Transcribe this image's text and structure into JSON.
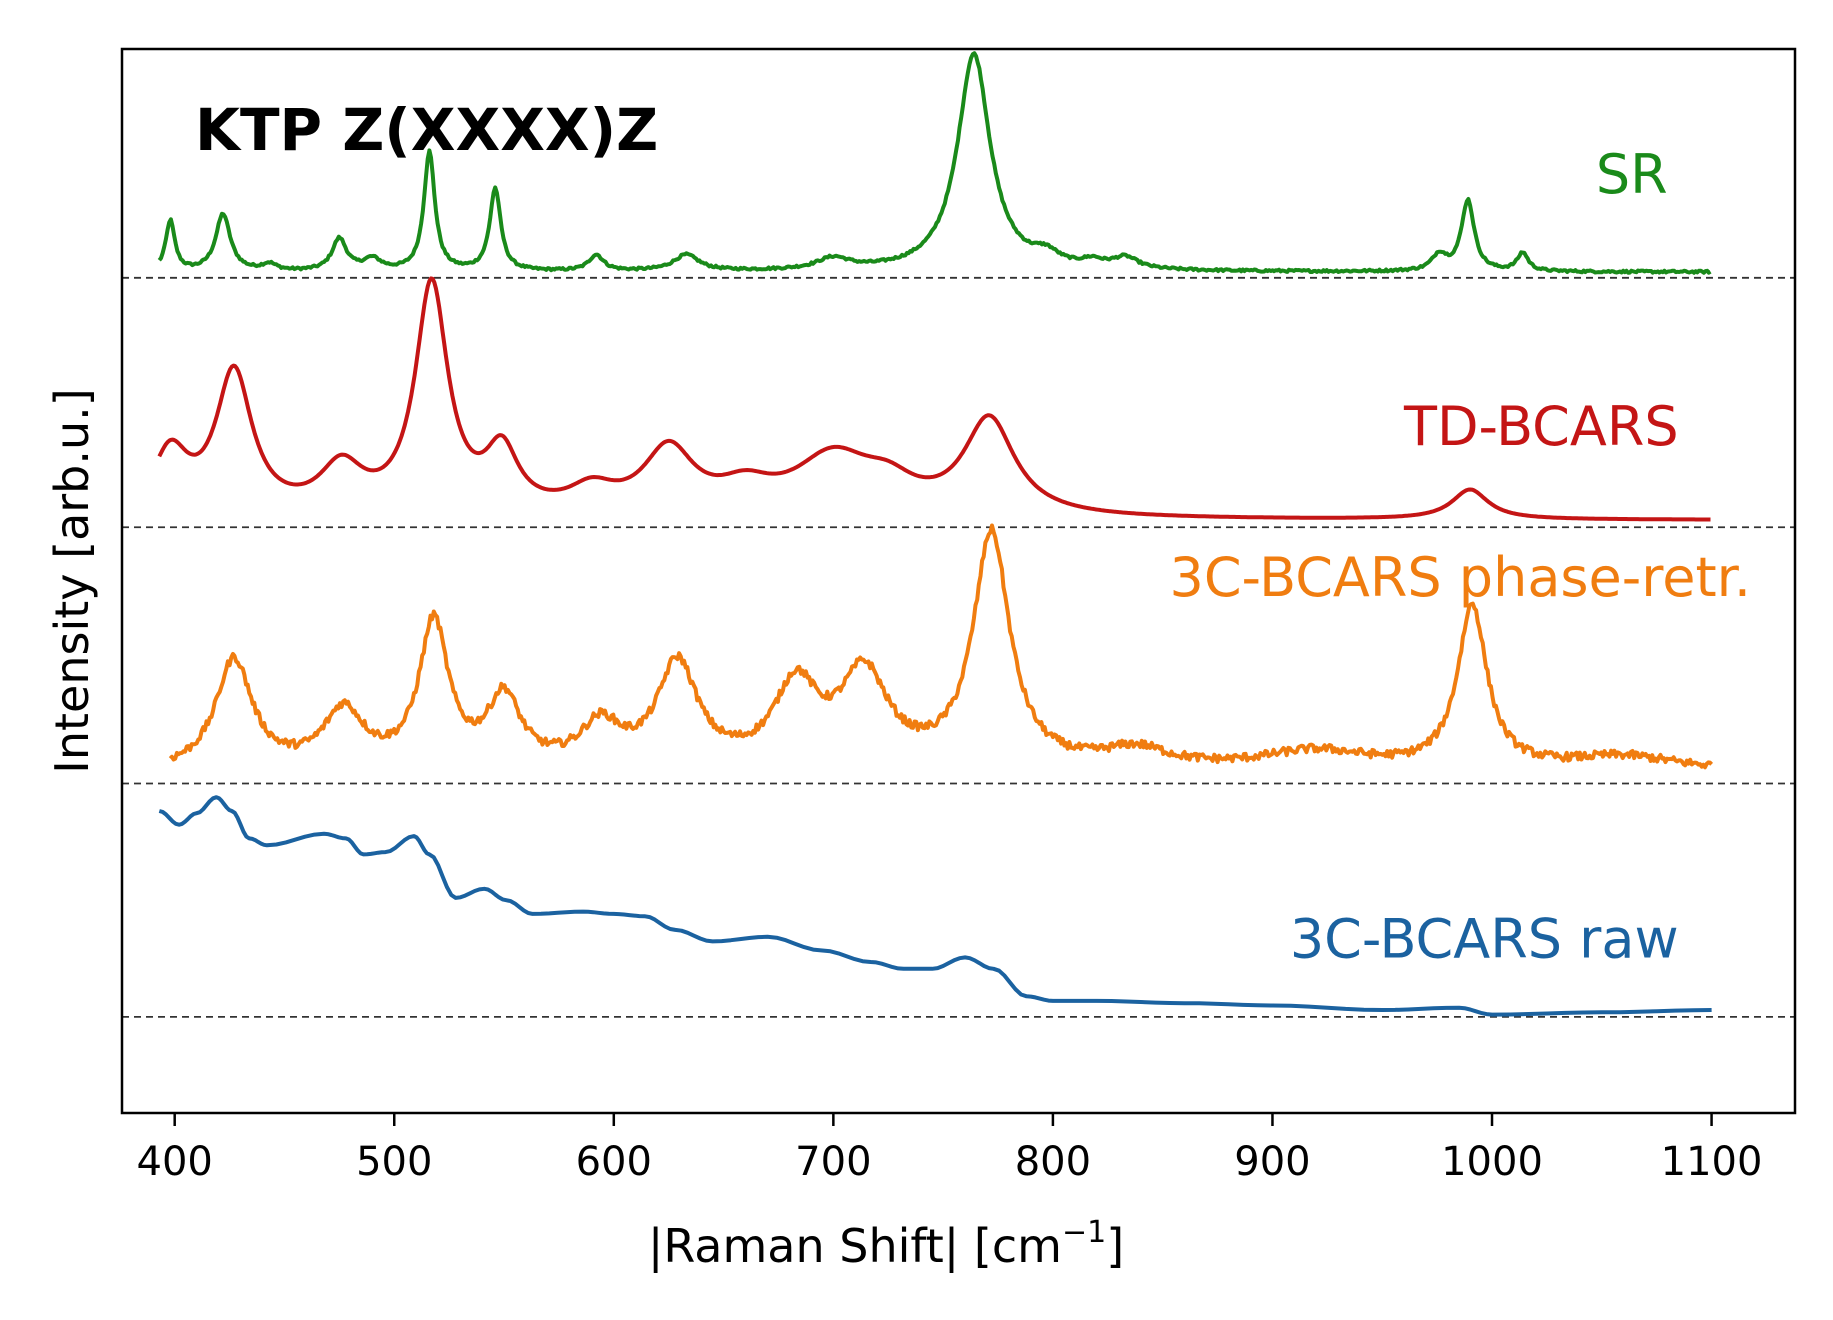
{
  "chart_data": {
    "type": "line",
    "title": "KTP Z(XXXX)Z",
    "xlabel": "|Raman Shift| [cm",
    "xlabel_sup": "−1",
    "xlabel_close": "]",
    "ylabel": "Intensity [arb.u.]",
    "xlim": [
      376,
      1138
    ],
    "ylim": [
      -0.2,
      4.45
    ],
    "x_ticks": [
      400,
      500,
      600,
      700,
      800,
      900,
      1000,
      1100
    ],
    "x_tick_labels": [
      "400",
      "500",
      "600",
      "700",
      "800",
      "900",
      "1000",
      "1100"
    ],
    "y_ticks": [],
    "grid": false,
    "legend": "inline labels next to each trace",
    "series": [
      {
        "name": "SR",
        "label": "SR",
        "color": "#1a8a1a",
        "baseline": 3.45,
        "label_anchor": [
          1080,
          3.82
        ],
        "peaks": [
          [
            398,
            0.22,
            2.5
          ],
          [
            422,
            0.25,
            4
          ],
          [
            443,
            0.03,
            4
          ],
          [
            475,
            0.14,
            4
          ],
          [
            490,
            0.05,
            5
          ],
          [
            516,
            0.52,
            3
          ],
          [
            546,
            0.36,
            3
          ],
          [
            592,
            0.07,
            4
          ],
          [
            633,
            0.07,
            7
          ],
          [
            700,
            0.05,
            9
          ],
          [
            764,
            0.95,
            9
          ],
          [
            797,
            0.05,
            7
          ],
          [
            818,
            0.03,
            6
          ],
          [
            833,
            0.05,
            7
          ],
          [
            976,
            0.07,
            4
          ],
          [
            989,
            0.31,
            3.5
          ],
          [
            1014,
            0.08,
            3
          ]
        ],
        "offset": 0.025,
        "noise": 0.005,
        "x_start": 393
      },
      {
        "name": "TD-BCARS",
        "label": "TD-BCARS",
        "color": "#c41515",
        "baseline": 2.36,
        "label_anchor": [
          1085,
          2.72
        ],
        "peaks": [
          [
            398,
            0.27,
            10
          ],
          [
            427,
            0.62,
            10
          ],
          [
            476,
            0.2,
            12
          ],
          [
            517,
            1.0,
            9
          ],
          [
            549,
            0.26,
            9
          ],
          [
            590,
            0.1,
            13
          ],
          [
            625,
            0.28,
            14
          ],
          [
            660,
            0.1,
            15
          ],
          [
            700,
            0.25,
            22
          ],
          [
            725,
            0.1,
            15
          ],
          [
            771,
            0.42,
            14
          ],
          [
            990,
            0.13,
            10
          ]
        ],
        "offset": 0.03,
        "noise": 0.0,
        "x_start": 393
      },
      {
        "name": "3C-BCARS phase-retr.",
        "label": "3C-BCARS phase-retr.",
        "color": "#f07d10",
        "baseline": 1.24,
        "label_anchor": [
          1118,
          2.06
        ],
        "peaks": [
          [
            427,
            0.48,
            10
          ],
          [
            477,
            0.25,
            11
          ],
          [
            518,
            0.63,
            8
          ],
          [
            550,
            0.3,
            9
          ],
          [
            594,
            0.18,
            11
          ],
          [
            629,
            0.45,
            11
          ],
          [
            683,
            0.35,
            12
          ],
          [
            714,
            0.4,
            13
          ],
          [
            772,
            1.02,
            10
          ],
          [
            838,
            0.08,
            18
          ],
          [
            920,
            0.08,
            30
          ],
          [
            991,
            0.71,
            8
          ],
          [
            1060,
            0.06,
            30
          ]
        ],
        "offset": 0.05,
        "noise": 0.018,
        "x_start": 398
      },
      {
        "name": "3C-BCARS raw",
        "label": "3C-BCARS raw",
        "color": "#1b62a0",
        "baseline": 0.22,
        "label_anchor": [
          1085,
          0.48
        ],
        "knots": [
          [
            393,
            1.12
          ],
          [
            402,
            1.06
          ],
          [
            410,
            1.11
          ],
          [
            419,
            1.18
          ],
          [
            426,
            1.12
          ],
          [
            434,
            1.0
          ],
          [
            442,
            0.97
          ],
          [
            468,
            1.02
          ],
          [
            478,
            1.0
          ],
          [
            486,
            0.93
          ],
          [
            496,
            0.94
          ],
          [
            509,
            1.01
          ],
          [
            516,
            0.93
          ],
          [
            528,
            0.74
          ],
          [
            541,
            0.78
          ],
          [
            551,
            0.73
          ],
          [
            563,
            0.67
          ],
          [
            586,
            0.68
          ],
          [
            600,
            0.67
          ],
          [
            614,
            0.66
          ],
          [
            628,
            0.6
          ],
          [
            645,
            0.55
          ],
          [
            670,
            0.57
          ],
          [
            695,
            0.51
          ],
          [
            717,
            0.46
          ],
          [
            732,
            0.43
          ],
          [
            745,
            0.43
          ],
          [
            760,
            0.48
          ],
          [
            773,
            0.43
          ],
          [
            788,
            0.31
          ],
          [
            800,
            0.29
          ],
          [
            820,
            0.29
          ],
          [
            860,
            0.28
          ],
          [
            900,
            0.27
          ],
          [
            950,
            0.25
          ],
          [
            985,
            0.26
          ],
          [
            1000,
            0.23
          ],
          [
            1050,
            0.24
          ],
          [
            1100,
            0.25
          ]
        ]
      }
    ]
  }
}
